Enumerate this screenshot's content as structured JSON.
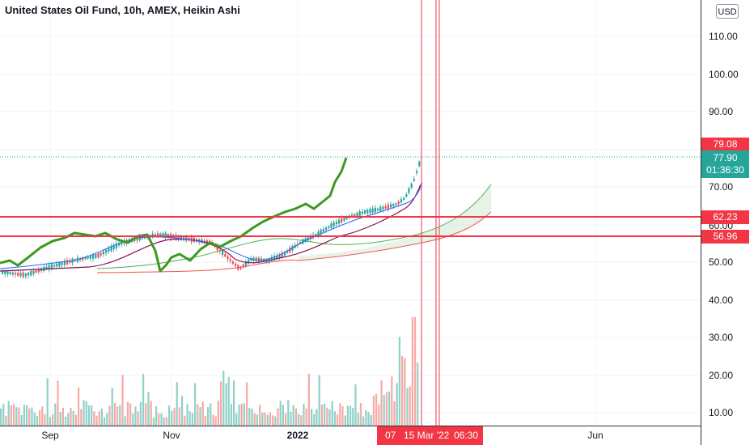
{
  "title": "United States Oil Fund, 10h, AMEX, Heikin Ashi",
  "currency_button": "USD",
  "price_axis": {
    "ticks": [
      "110.00",
      "100.00",
      "90.00",
      "70.00",
      "60.00",
      "50.00",
      "40.00",
      "30.00",
      "20.00",
      "10.00"
    ],
    "labels": {
      "high": "79.08",
      "last_price": "77.90",
      "countdown": "01:36:30",
      "level_upper": "62.23",
      "level_lower": "56.96"
    }
  },
  "time_axis": {
    "ticks": [
      "Sep",
      "Nov",
      "2022",
      "Jun"
    ],
    "highlight": {
      "left": "07",
      "date": "15 Mar '22",
      "time": "06:30"
    }
  },
  "colors": {
    "up": "#26a69a",
    "down": "#ef5350",
    "lagging_span": "#3b9a1f",
    "level_line": "#f23645"
  }
}
